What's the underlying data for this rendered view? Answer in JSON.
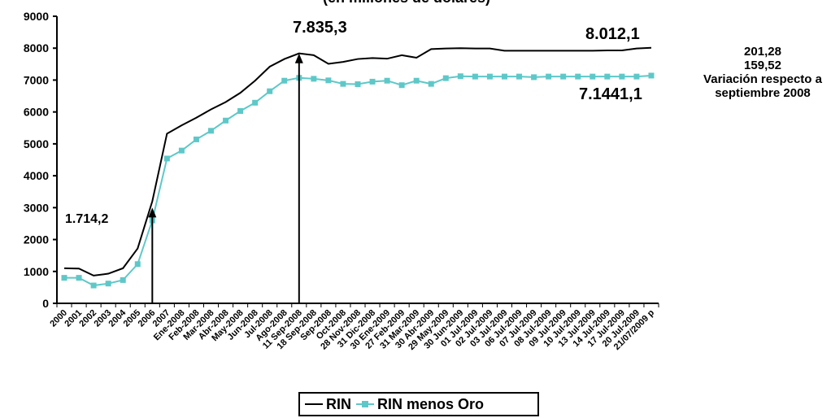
{
  "chart_data": {
    "type": "line",
    "title": "(en millones de dólares)",
    "categories": [
      "2000",
      "2001",
      "2002",
      "2003",
      "2004",
      "2005",
      "2006",
      "2007",
      "Ene-2008",
      "Feb-2008",
      "Mar-2008",
      "Abr-2008",
      "May-2008",
      "Jun-2008",
      "Jul-2008",
      "Ago-2008",
      "11 Sep-2008",
      "18 Sep-2008",
      "Sep-2008",
      "Oct-2008",
      "28 Nov-2008",
      "31 Dic-2008",
      "30 Ene-2009",
      "27 Feb-2009",
      "31 Mar-2009",
      "30 Abr-2009",
      "29 May-2009",
      "30 Jun-2009",
      "01 Jul-2009",
      "02 Jul-2009",
      "03 Jul-2009",
      "06 Jul-2009",
      "07 Jul-2009",
      "08 Jul-2009",
      "09 Jul-2009",
      "10 Jul-2009",
      "13 Jul-2009",
      "14 Jul-2009",
      "17 Jul-2009",
      "20 Jul-2009",
      "21/07/2009 p"
    ],
    "ylim": [
      0,
      9000
    ],
    "yticks": [
      "0",
      "1000",
      "2000",
      "3000",
      "4000",
      "5000",
      "6000",
      "7000",
      "8000",
      "9000"
    ],
    "series": [
      {
        "name": "RIN",
        "color": "#000000",
        "values": [
          1100,
          1090,
          870,
          930,
          1100,
          1720,
          3200,
          5320,
          5580,
          5820,
          6080,
          6310,
          6600,
          6980,
          7420,
          7660,
          7835,
          7780,
          7510,
          7570,
          7660,
          7690,
          7670,
          7780,
          7700,
          7970,
          7990,
          8000,
          7990,
          7990,
          7920,
          7920,
          7920,
          7920,
          7920,
          7920,
          7920,
          7930,
          7930,
          7990,
          8012
        ]
      },
      {
        "name": "RIN menos Oro",
        "color": "#5ec8c8",
        "values": [
          800,
          800,
          560,
          620,
          730,
          1230,
          2600,
          4540,
          4790,
          5140,
          5410,
          5730,
          6030,
          6290,
          6650,
          6980,
          7070,
          7040,
          6990,
          6880,
          6870,
          6950,
          6980,
          6840,
          6980,
          6880,
          7060,
          7120,
          7110,
          7110,
          7110,
          7110,
          7090,
          7110,
          7110,
          7110,
          7110,
          7110,
          7110,
          7110,
          7140
        ]
      }
    ],
    "annotations": {
      "start_value": "1.714,2",
      "peak_value": "7.835,3",
      "end_rin": "8.012,1",
      "end_oro": "7.1441,1"
    },
    "side_note": {
      "line1": "201,28",
      "line2": "159,52",
      "line3": "Variación respecto a",
      "line4": "septiembre 2008"
    },
    "legend": {
      "rin": "RIN",
      "rin_menos_oro": "RIN menos Oro",
      "placement": "bottom"
    },
    "grid": false
  }
}
